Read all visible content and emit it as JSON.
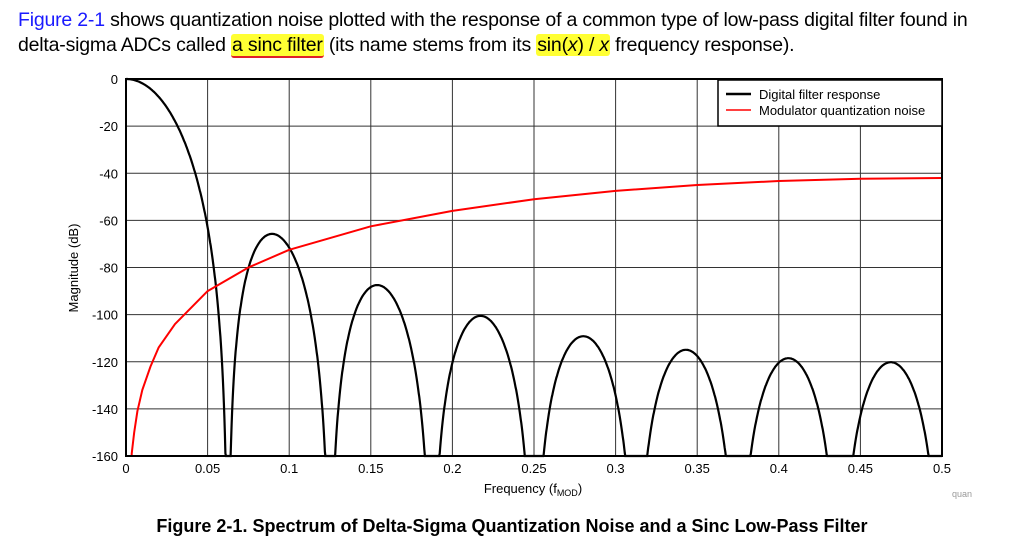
{
  "paragraph": {
    "link": "Figure 2-1",
    "text1": " shows quantization noise plotted with the response of a common type of low-pass digital filter found in delta-sigma ADCs called ",
    "highlight1": "a sinc filter",
    "text2": " (its name stems from its ",
    "highlight2_a": "sin(",
    "highlight2_x": "x",
    "highlight2_b": ") / ",
    "highlight2_x2": "x",
    "text3": " frequency response)."
  },
  "caption": "Figure 2-1. Spectrum of Delta-Sigma Quantization Noise and a Sinc Low-Pass Filter",
  "watermark": "quan",
  "chart_data": {
    "type": "line",
    "xlabel": "Frequency (f",
    "xlabel_sub": "MOD",
    "xlabel_end": ")",
    "ylabel": "Magnitude (dB)",
    "xlim": [
      0,
      0.5
    ],
    "ylim": [
      -160,
      0
    ],
    "xticks": [
      "0",
      "0.05",
      "0.1",
      "0.15",
      "0.2",
      "0.25",
      "0.3",
      "0.35",
      "0.4",
      "0.45",
      "0.5"
    ],
    "yticks": [
      "0",
      "-20",
      "-40",
      "-60",
      "-80",
      "-100",
      "-120",
      "-140",
      "-160"
    ],
    "grid": true,
    "legend_position": "top-right",
    "colors": {
      "filter": "#000000",
      "noise": "#ff0000"
    },
    "series": [
      {
        "name": "Digital filter response",
        "nulls_x": [
          0.0625,
          0.125,
          0.1875,
          0.25,
          0.3125,
          0.375,
          0.4375
        ],
        "peaks": [
          [
            0,
            0
          ],
          [
            0.09,
            -65
          ],
          [
            0.155,
            -87
          ],
          [
            0.218,
            -100
          ],
          [
            0.28,
            -109
          ],
          [
            0.343,
            -114
          ],
          [
            0.405,
            -118
          ],
          [
            0.468,
            -120
          ]
        ],
        "points": [
          [
            0,
            0
          ],
          [
            0.02,
            -7
          ],
          [
            0.03,
            -17
          ],
          [
            0.04,
            -32
          ],
          [
            0.05,
            -60
          ],
          [
            0.0625,
            -160
          ]
        ]
      },
      {
        "name": "Modulator quantization noise",
        "x": [
          0.0035,
          0.005,
          0.007,
          0.01,
          0.015,
          0.02,
          0.03,
          0.05,
          0.075,
          0.1,
          0.15,
          0.2,
          0.25,
          0.3,
          0.35,
          0.4,
          0.45,
          0.5
        ],
        "y": [
          -159,
          -150,
          -141,
          -132,
          -122,
          -114,
          -104,
          -90,
          -80,
          -72.5,
          -62.5,
          -56,
          -51,
          -47.5,
          -45,
          -43.3,
          -42.3,
          -42
        ]
      }
    ]
  }
}
